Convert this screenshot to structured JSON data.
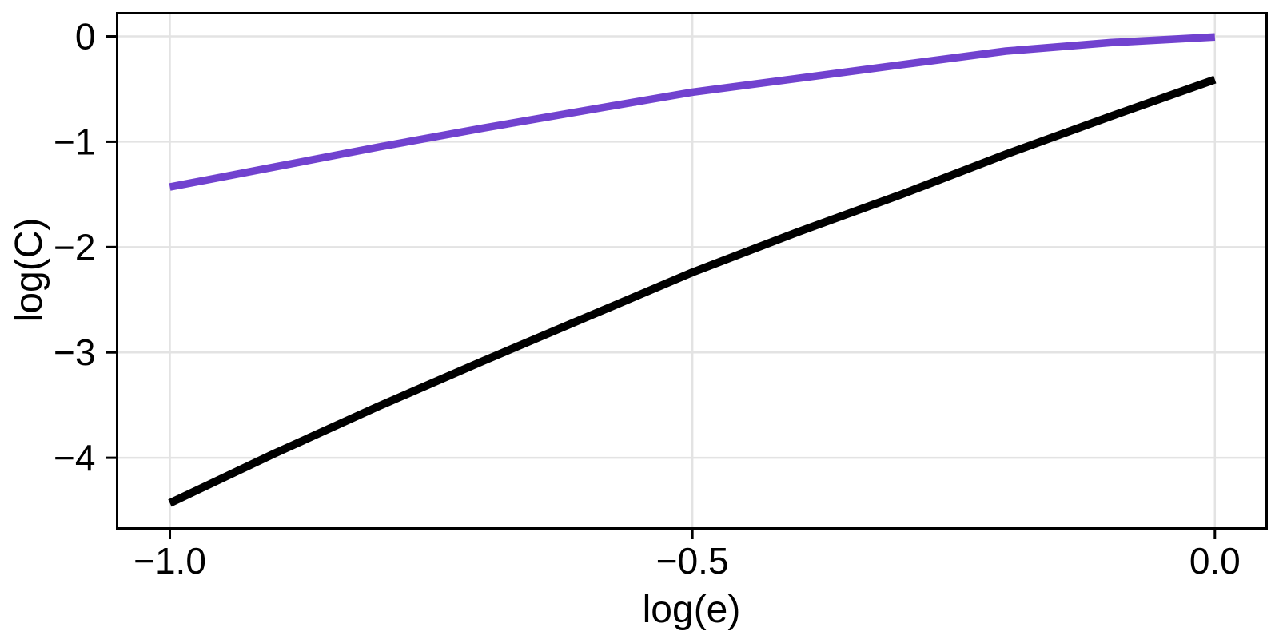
{
  "chart_data": {
    "type": "line",
    "title": "",
    "xlabel": "log(e)",
    "ylabel": "log(C)",
    "xlim": [
      -1.0505,
      0.0495
    ],
    "ylim": [
      -4.67,
      0.22
    ],
    "grid": true,
    "legend_position": "none",
    "background": "#ffffff",
    "grid_color": "#e3e3e3",
    "frame_color": "#000000",
    "tick_color": "#000000",
    "x_ticks": [
      {
        "value": -1.0,
        "label": "−1.0"
      },
      {
        "value": -0.5,
        "label": "−0.5"
      },
      {
        "value": 0.0,
        "label": "0.0"
      }
    ],
    "y_ticks": [
      {
        "value": 0,
        "label": "0"
      },
      {
        "value": -1,
        "label": "−1"
      },
      {
        "value": -2,
        "label": "−2"
      },
      {
        "value": -3,
        "label": "−3"
      },
      {
        "value": -4,
        "label": "−4"
      }
    ],
    "series": [
      {
        "name": "upper-purple-line",
        "color": "#7142cf",
        "stroke_width": 9.5,
        "points": [
          [
            -1.0,
            -1.43
          ],
          [
            -0.9,
            -1.24
          ],
          [
            -0.8,
            -1.05
          ],
          [
            -0.7,
            -0.87
          ],
          [
            -0.6,
            -0.7
          ],
          [
            -0.5,
            -0.53
          ],
          [
            -0.4,
            -0.4
          ],
          [
            -0.3,
            -0.27
          ],
          [
            -0.2,
            -0.14
          ],
          [
            -0.1,
            -0.06
          ],
          [
            0.0,
            -0.005
          ]
        ]
      },
      {
        "name": "lower-black-line",
        "color": "#000000",
        "stroke_width": 10,
        "points": [
          [
            -1.0,
            -4.43
          ],
          [
            -0.9,
            -3.96
          ],
          [
            -0.8,
            -3.51
          ],
          [
            -0.7,
            -3.08
          ],
          [
            -0.6,
            -2.66
          ],
          [
            -0.5,
            -2.24
          ],
          [
            -0.4,
            -1.86
          ],
          [
            -0.3,
            -1.5
          ],
          [
            -0.2,
            -1.12
          ],
          [
            -0.1,
            -0.76
          ],
          [
            0.0,
            -0.41
          ]
        ]
      }
    ]
  }
}
